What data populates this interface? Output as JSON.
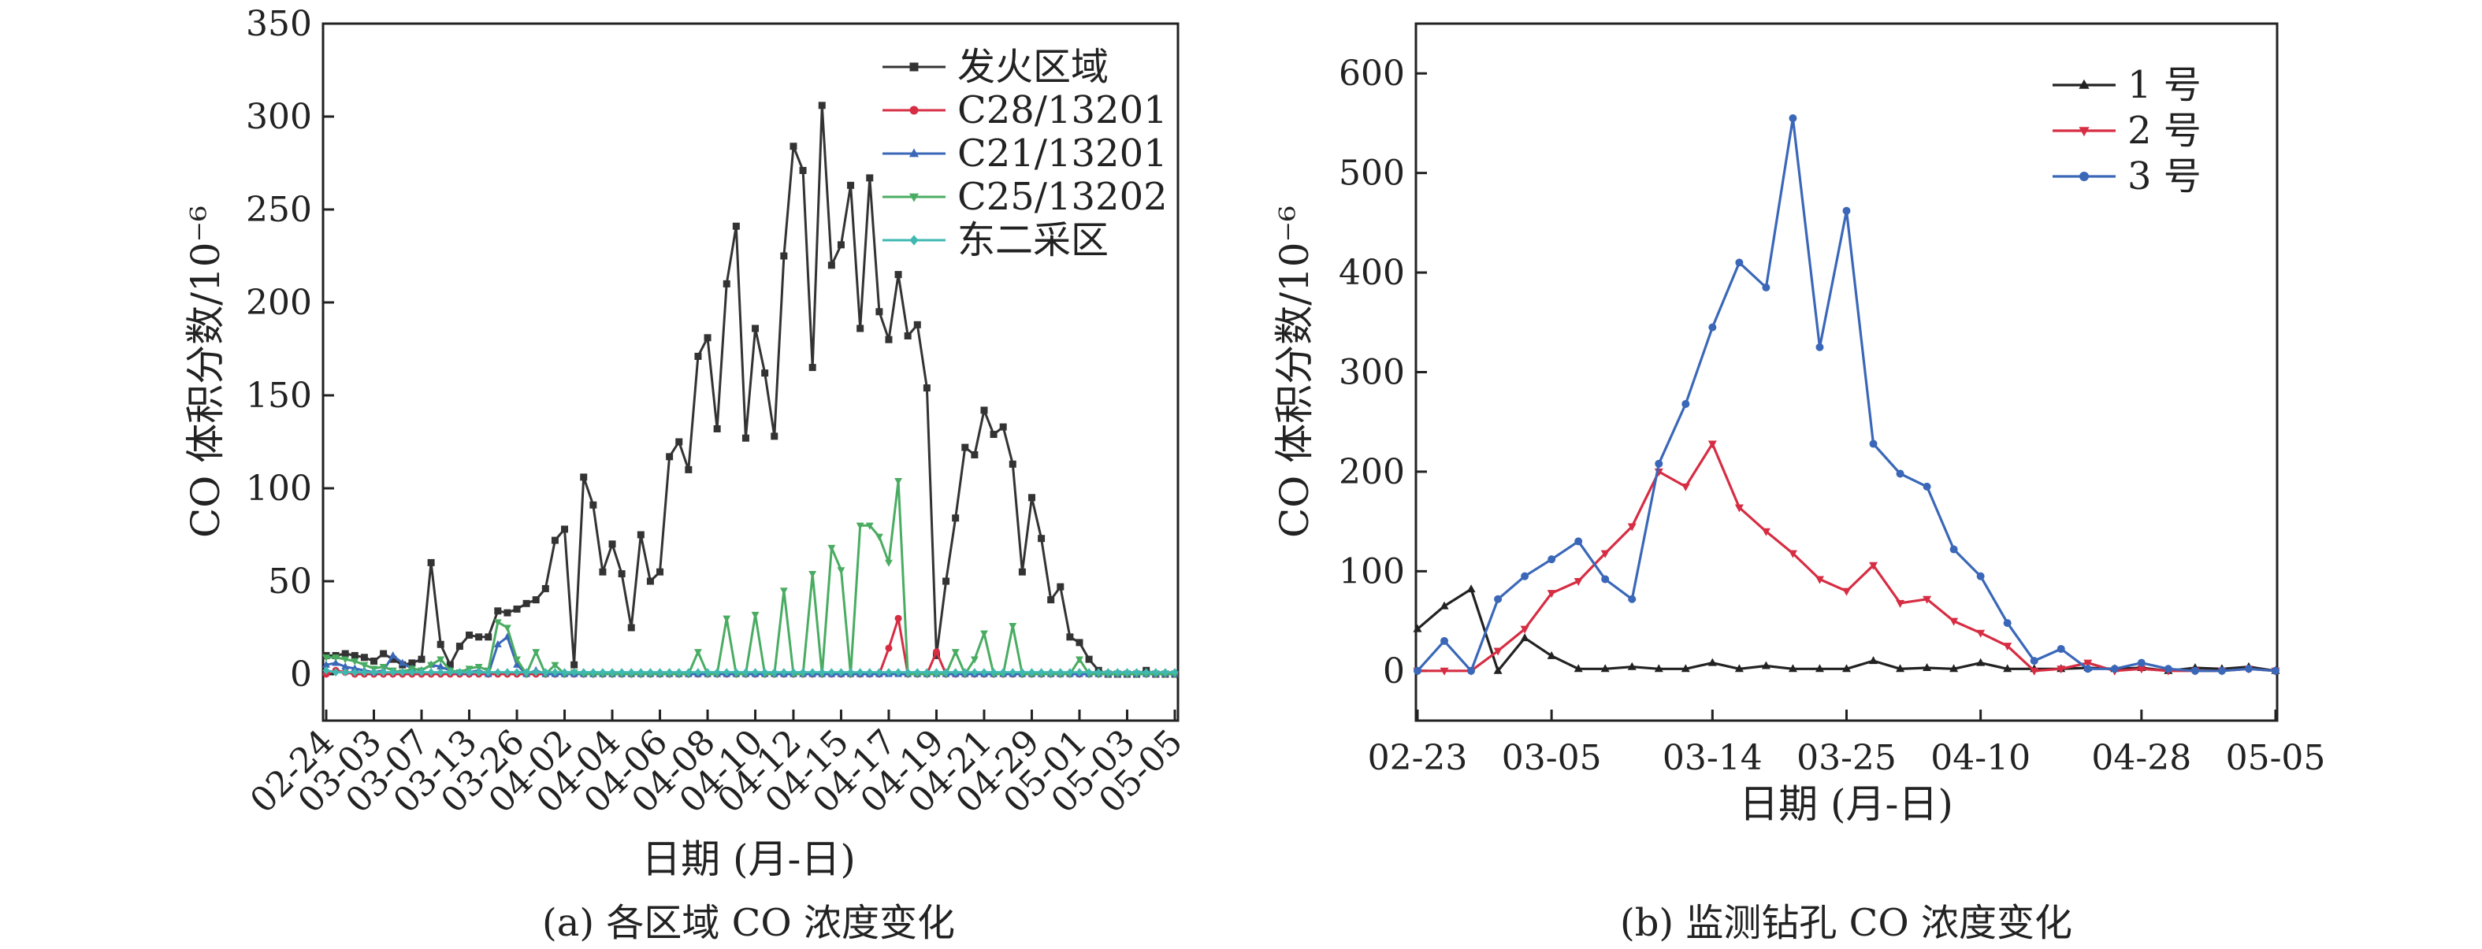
{
  "chart_data": [
    {
      "panel": "a",
      "type": "line",
      "caption": "(a) 各区域 CO 浓度变化",
      "xlabel": "日期 (月-日)",
      "ylabel": "CO 体积分数/10⁻⁶",
      "ylim": [
        -25,
        350
      ],
      "yticks": [
        0,
        50,
        100,
        150,
        200,
        250,
        300,
        350
      ],
      "x_tick_labels": [
        "02-24",
        "03-03",
        "03-07",
        "03-13",
        "03-26",
        "04-02",
        "04-04",
        "04-06",
        "04-08",
        "04-10",
        "04-12",
        "04-15",
        "04-17",
        "04-19",
        "04-21",
        "04-29",
        "05-01",
        "05-03",
        "05-05"
      ],
      "n_points": 90,
      "legend_position": "top-right",
      "series": [
        {
          "name": "发火区域",
          "color": "#333333",
          "marker": "square",
          "values": [
            10,
            10,
            11,
            10,
            9,
            7,
            11,
            8,
            5,
            6,
            8,
            60,
            16,
            5,
            15,
            21,
            20,
            20,
            34,
            33,
            35,
            38,
            40,
            46,
            72,
            78,
            5,
            106,
            91,
            55,
            70,
            54,
            25,
            75,
            50,
            55,
            117,
            125,
            110,
            171,
            181,
            132,
            210,
            241,
            127,
            186,
            162,
            128,
            225,
            284,
            271,
            165,
            306,
            220,
            231,
            263,
            186,
            267,
            195,
            180,
            215,
            182,
            188,
            154,
            10,
            50,
            84,
            122,
            118,
            142,
            129,
            133,
            113,
            55,
            95,
            73,
            40,
            47,
            20,
            17,
            8,
            2,
            0,
            0,
            0,
            0,
            2,
            0,
            0,
            0
          ]
        },
        {
          "name": "C28/13201",
          "color": "#d62d43",
          "marker": "circle",
          "values": [
            0,
            2,
            1,
            0,
            0,
            0,
            0,
            0,
            0,
            0,
            0,
            0,
            0,
            0,
            0,
            0,
            0,
            0,
            0,
            0,
            0,
            0,
            0,
            0,
            0,
            0,
            0,
            0,
            0,
            0,
            0,
            0,
            0,
            0,
            0,
            0,
            0,
            0,
            0,
            0,
            0,
            0,
            0,
            0,
            0,
            0,
            0,
            0,
            0,
            0,
            0,
            0,
            0,
            0,
            0,
            0,
            0,
            0,
            0,
            14,
            30,
            0,
            0,
            0,
            12,
            0,
            0,
            0,
            0,
            0,
            0,
            0,
            0,
            0,
            0,
            0,
            0,
            0,
            0,
            0,
            0,
            0,
            0,
            0,
            0,
            0,
            0,
            0,
            0,
            0
          ]
        },
        {
          "name": "C21/13201",
          "color": "#3a67b8",
          "marker": "triangle-up",
          "values": [
            5,
            6,
            4,
            3,
            2,
            1,
            2,
            10,
            6,
            3,
            2,
            5,
            4,
            2,
            1,
            1,
            2,
            0,
            16,
            20,
            5,
            0,
            2,
            0,
            0,
            0,
            0,
            0,
            0,
            0,
            0,
            0,
            0,
            0,
            0,
            0,
            0,
            0,
            0,
            0,
            0,
            0,
            0,
            0,
            0,
            0,
            0,
            0,
            0,
            0,
            0,
            0,
            0,
            0,
            0,
            0,
            0,
            0,
            0,
            0,
            0,
            0,
            0,
            0,
            0,
            0,
            0,
            0,
            0,
            0,
            0,
            0,
            0,
            0,
            0,
            0,
            0,
            0,
            0,
            0,
            0,
            0,
            0,
            0,
            0,
            0,
            0,
            0,
            0,
            0
          ]
        },
        {
          "name": "C25/13202",
          "color": "#4aac62",
          "marker": "triangle-down",
          "values": [
            9,
            9,
            8,
            7,
            5,
            3,
            4,
            2,
            1,
            3,
            2,
            5,
            8,
            2,
            1,
            3,
            4,
            2,
            28,
            25,
            8,
            0,
            12,
            0,
            5,
            0,
            1,
            0,
            0,
            0,
            0,
            0,
            0,
            0,
            0,
            0,
            0,
            0,
            0,
            12,
            0,
            0,
            30,
            0,
            0,
            32,
            0,
            0,
            45,
            0,
            0,
            54,
            0,
            68,
            56,
            0,
            80,
            80,
            74,
            60,
            104,
            0,
            0,
            0,
            0,
            0,
            12,
            0,
            8,
            22,
            0,
            0,
            26,
            0,
            0,
            0,
            0,
            0,
            0,
            8,
            0,
            0,
            0,
            0,
            0,
            0,
            0,
            0,
            0,
            0
          ]
        },
        {
          "name": "东二采区",
          "color": "#3fb8b0",
          "marker": "diamond",
          "values": [
            2,
            1,
            1,
            1,
            1,
            1,
            1,
            1,
            1,
            1,
            1,
            1,
            1,
            1,
            1,
            1,
            1,
            1,
            1,
            1,
            1,
            1,
            1,
            1,
            1,
            1,
            1,
            1,
            1,
            1,
            1,
            1,
            1,
            1,
            1,
            1,
            1,
            1,
            1,
            1,
            1,
            1,
            1,
            1,
            1,
            1,
            1,
            1,
            1,
            1,
            1,
            1,
            1,
            1,
            1,
            1,
            1,
            1,
            1,
            1,
            1,
            1,
            1,
            1,
            1,
            1,
            1,
            1,
            1,
            1,
            1,
            1,
            1,
            1,
            1,
            1,
            1,
            1,
            1,
            1,
            1,
            1,
            1,
            1,
            1,
            1,
            1,
            1,
            1,
            1
          ]
        }
      ]
    },
    {
      "panel": "b",
      "type": "line",
      "caption": "(b) 监测钻孔 CO 浓度变化",
      "xlabel": "日期 (月-日)",
      "ylabel": "CO 体积分数/10⁻⁶",
      "ylim": [
        -50,
        650
      ],
      "yticks": [
        0,
        100,
        200,
        300,
        400,
        500,
        600
      ],
      "x_tick_labels": [
        "02-23",
        "03-05",
        "03-14",
        "03-25",
        "04-10",
        "04-28",
        "05-05"
      ],
      "n_points": 33,
      "legend_position": "top-right",
      "series": [
        {
          "name": "1 号",
          "color": "#222222",
          "marker": "triangle-up",
          "values": [
            42,
            65,
            82,
            0,
            33,
            15,
            2,
            2,
            4,
            2,
            2,
            8,
            2,
            5,
            2,
            2,
            2,
            10,
            2,
            3,
            2,
            8,
            2,
            2,
            2,
            3,
            2,
            3,
            0,
            3,
            2,
            4,
            0
          ]
        },
        {
          "name": "2 号",
          "color": "#d62d43",
          "marker": "triangle-down",
          "values": [
            0,
            0,
            0,
            20,
            42,
            78,
            90,
            118,
            145,
            200,
            185,
            228,
            164,
            140,
            118,
            92,
            80,
            106,
            68,
            72,
            50,
            38,
            25,
            0,
            2,
            8,
            0,
            2,
            0,
            0,
            0,
            2,
            0
          ]
        },
        {
          "name": "3 号",
          "color": "#3a67b8",
          "marker": "circle",
          "values": [
            0,
            30,
            0,
            72,
            95,
            112,
            130,
            92,
            72,
            208,
            268,
            345,
            410,
            385,
            555,
            325,
            462,
            228,
            198,
            185,
            122,
            95,
            48,
            10,
            22,
            2,
            2,
            8,
            2,
            0,
            0,
            2,
            0
          ]
        }
      ]
    }
  ]
}
